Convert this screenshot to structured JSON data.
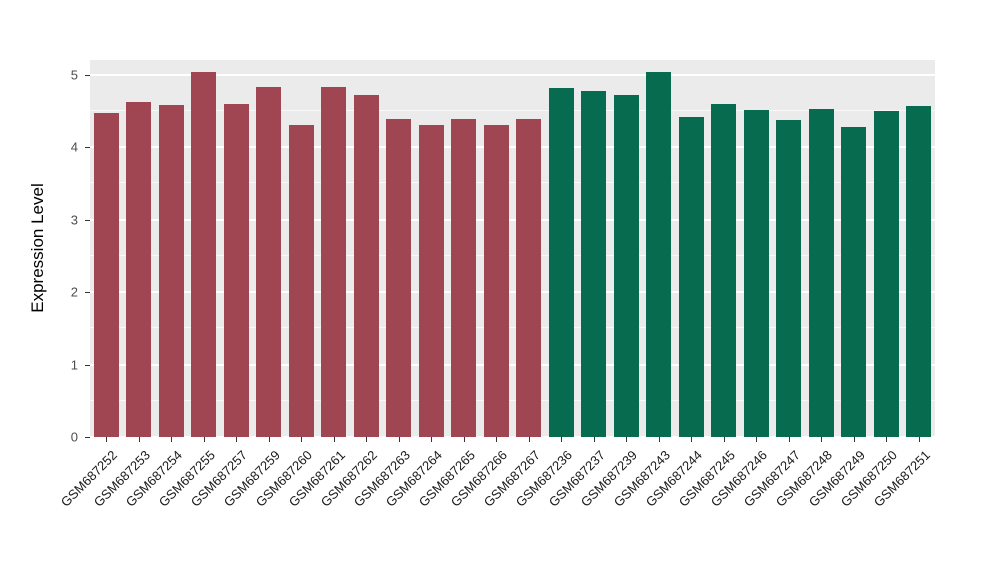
{
  "figure": {
    "background": "#ffffff",
    "panel_background": "#EBEBEB",
    "grid_color": "#ffffff"
  },
  "chart_data": {
    "type": "bar",
    "title": "",
    "xlabel": "",
    "ylabel": "Expression Level",
    "ylim": [
      0,
      5.2
    ],
    "yticks": [
      0,
      1,
      2,
      3,
      4,
      5
    ],
    "minor_ticks": [
      0.5,
      1.5,
      2.5,
      3.5,
      4.5
    ],
    "grid": "on",
    "legend": "none",
    "categories": [
      "GSM687252",
      "GSM687253",
      "GSM687254",
      "GSM687255",
      "GSM687257",
      "GSM687259",
      "GSM687260",
      "GSM687261",
      "GSM687262",
      "GSM687263",
      "GSM687264",
      "GSM687265",
      "GSM687266",
      "GSM687267",
      "GSM687236",
      "GSM687237",
      "GSM687239",
      "GSM687243",
      "GSM687244",
      "GSM687245",
      "GSM687246",
      "GSM687247",
      "GSM687248",
      "GSM687249",
      "GSM687250",
      "GSM687251"
    ],
    "values": [
      4.47,
      4.62,
      4.58,
      5.03,
      4.6,
      4.83,
      4.3,
      4.83,
      4.72,
      4.38,
      4.31,
      4.39,
      4.3,
      4.38,
      4.82,
      4.77,
      4.72,
      5.03,
      4.42,
      4.6,
      4.51,
      4.37,
      4.53,
      4.27,
      4.49,
      4.56
    ],
    "groups": [
      "group1",
      "group1",
      "group1",
      "group1",
      "group1",
      "group1",
      "group1",
      "group1",
      "group1",
      "group1",
      "group1",
      "group1",
      "group1",
      "group1",
      "group2",
      "group2",
      "group2",
      "group2",
      "group2",
      "group2",
      "group2",
      "group2",
      "group2",
      "group2",
      "group2",
      "group2"
    ],
    "group_colors": {
      "group1": "#A04552",
      "group2": "#066B4F"
    }
  }
}
